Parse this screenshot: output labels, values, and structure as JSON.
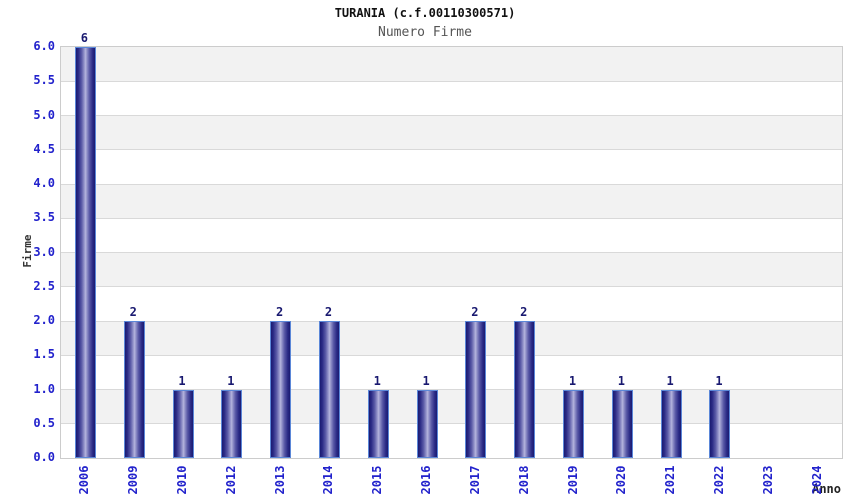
{
  "chart_data": {
    "type": "bar",
    "title": "TURANIA (c.f.00110300571)",
    "subtitle": "Numero Firme",
    "xlabel": "Anno",
    "ylabel": "Firme",
    "categories": [
      "2006",
      "2009",
      "2010",
      "2012",
      "2013",
      "2014",
      "2015",
      "2016",
      "2017",
      "2018",
      "2019",
      "2020",
      "2021",
      "2022",
      "2023",
      "2024"
    ],
    "values": [
      6,
      2,
      1,
      1,
      2,
      2,
      1,
      1,
      2,
      2,
      1,
      1,
      1,
      1,
      0,
      0
    ],
    "ylim": [
      0,
      6
    ],
    "ytick_step": 0.5,
    "ytick_labels": [
      "0.0",
      "0.5",
      "1.0",
      "1.5",
      "2.0",
      "2.5",
      "3.0",
      "3.5",
      "4.0",
      "4.5",
      "5.0",
      "5.5",
      "6.0"
    ],
    "grid": "horizontal gridlines every 0.5 with alternating gray/white bands",
    "legend": "none",
    "bar_value_labels_shown_for_nonzero_only": true,
    "colors": {
      "bar_dark": "#1b1b72",
      "bar_light": "#b6b6de",
      "bar_stroke": "#5b87d8",
      "tick_label": "#2222cc",
      "value_label": "#191970",
      "band_gray": "#f2f2f2",
      "gridline": "#d9d9d9",
      "plot_border": "#cccccc",
      "title_color": "#111111",
      "subtitle_color": "#555555",
      "axis_title_color": "#333333"
    }
  }
}
